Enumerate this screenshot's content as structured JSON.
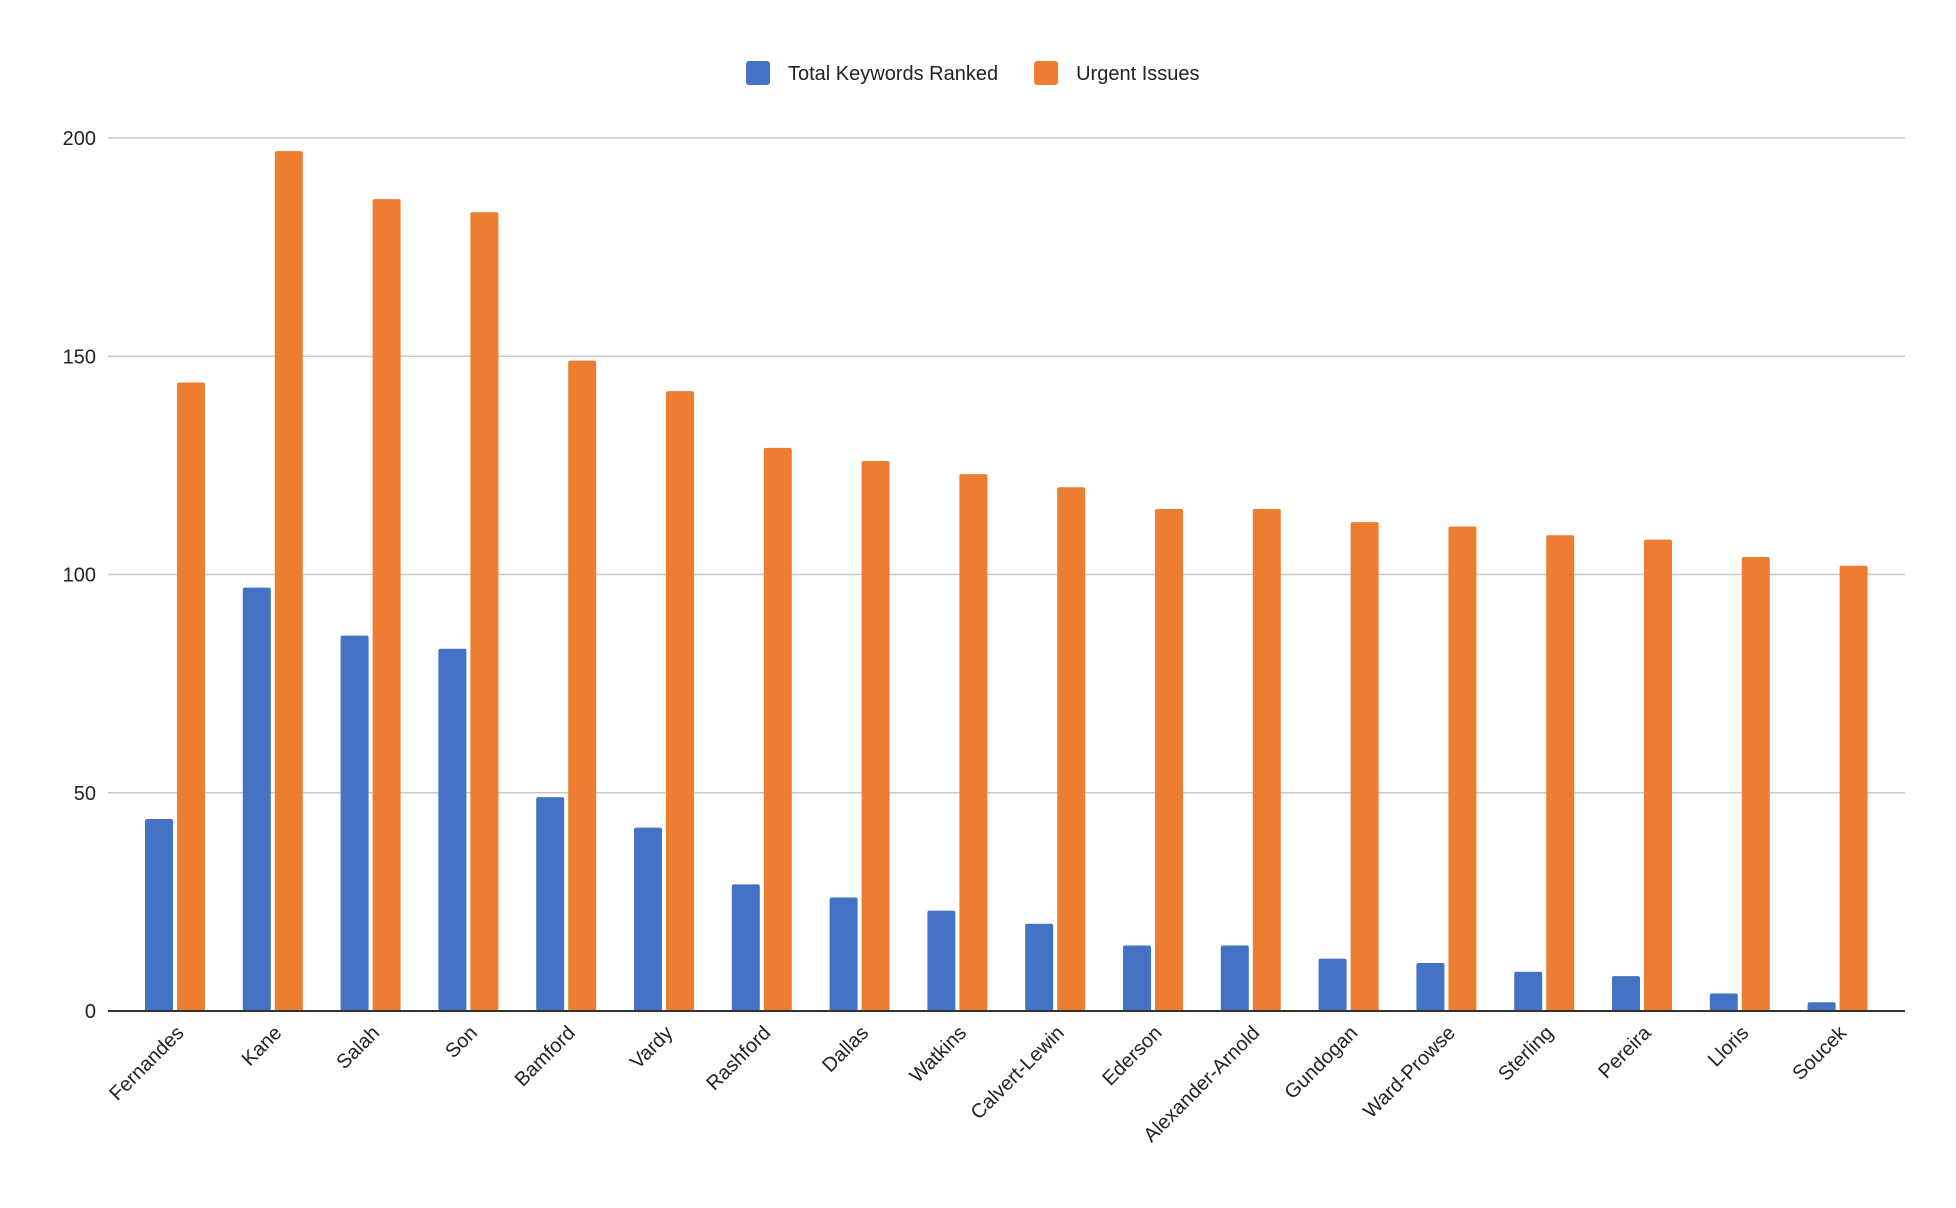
{
  "chart_data": {
    "type": "bar",
    "title": "",
    "xlabel": "",
    "ylabel": "",
    "ylim": [
      0,
      200
    ],
    "yticks": [
      0,
      50,
      100,
      150,
      200
    ],
    "grid": true,
    "legend_position": "top-center",
    "categories": [
      "Fernandes",
      "Kane",
      "Salah",
      "Son",
      "Bamford",
      "Vardy",
      "Rashford",
      "Dallas",
      "Watkins",
      "Calvert-Lewin",
      "Ederson",
      "Alexander-Arnold",
      "Gundogan",
      "Ward-Prowse",
      "Sterling",
      "Pereira",
      "Lloris",
      "Soucek"
    ],
    "series": [
      {
        "name": "Total Keywords Ranked",
        "color": "#4472C4",
        "values": [
          44,
          97,
          86,
          83,
          49,
          42,
          29,
          26,
          23,
          20,
          15,
          15,
          12,
          11,
          9,
          8,
          4,
          2
        ]
      },
      {
        "name": "Urgent Issues",
        "color": "#ED7D31",
        "values": [
          144,
          197,
          186,
          183,
          149,
          142,
          129,
          126,
          123,
          120,
          115,
          115,
          112,
          111,
          109,
          108,
          104,
          102
        ]
      }
    ]
  }
}
